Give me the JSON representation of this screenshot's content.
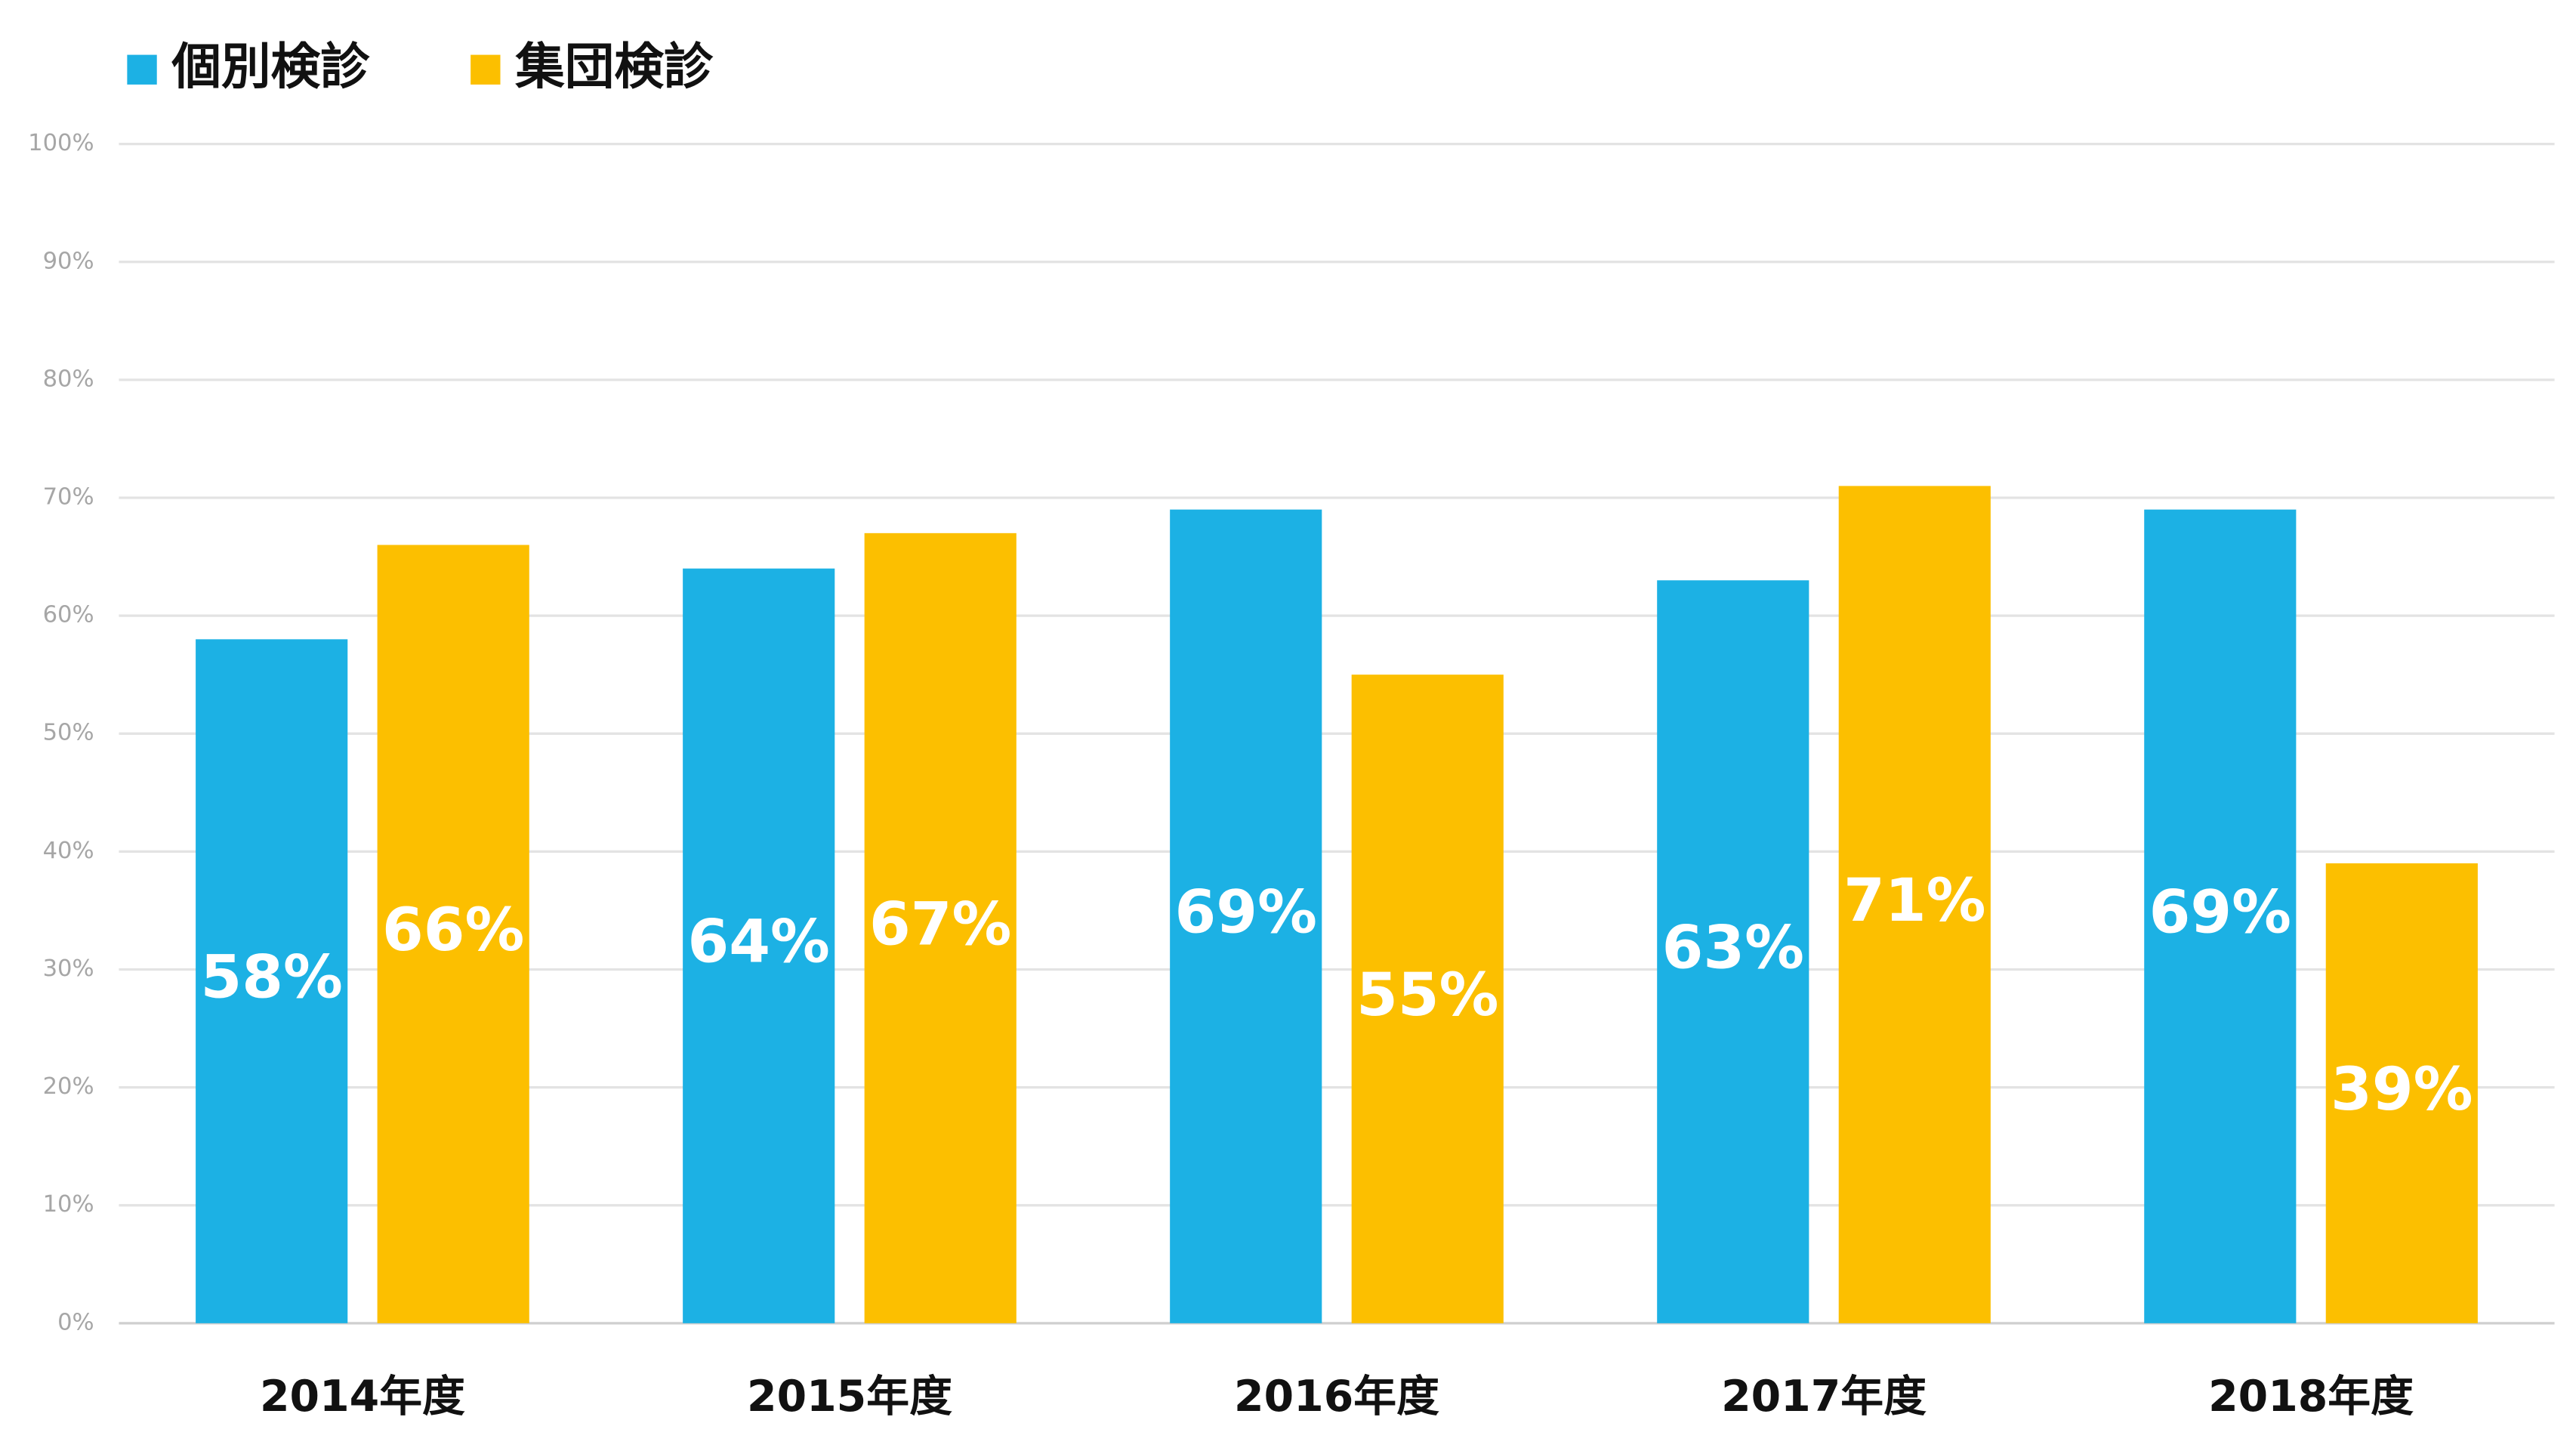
{
  "chart_data": {
    "type": "bar",
    "categories": [
      "2014年度",
      "2015年度",
      "2016年度",
      "2017年度",
      "2018年度"
    ],
    "series": [
      {
        "name": "個別検診",
        "color": "#1cb1e4",
        "values": [
          58,
          64,
          69,
          63,
          69
        ],
        "value_labels": [
          "58%",
          "64%",
          "69%",
          "63%",
          "69%"
        ]
      },
      {
        "name": "集団検診",
        "color": "#fcbf00",
        "values": [
          66,
          67,
          55,
          71,
          39
        ],
        "value_labels": [
          "66%",
          "67%",
          "55%",
          "71%",
          "39%"
        ]
      }
    ],
    "ylim": [
      0,
      100
    ],
    "yticks": [
      {
        "value": 0,
        "label": "0%"
      },
      {
        "value": 10,
        "label": "10%"
      },
      {
        "value": 20,
        "label": "20%"
      },
      {
        "value": 30,
        "label": "30%"
      },
      {
        "value": 40,
        "label": "40%"
      },
      {
        "value": 50,
        "label": "50%"
      },
      {
        "value": 60,
        "label": "60%"
      },
      {
        "value": 70,
        "label": "70%"
      },
      {
        "value": 80,
        "label": "80%"
      },
      {
        "value": 90,
        "label": "90%"
      },
      {
        "value": 100,
        "label": "100%"
      }
    ],
    "grid": true,
    "legend": "top-left"
  }
}
